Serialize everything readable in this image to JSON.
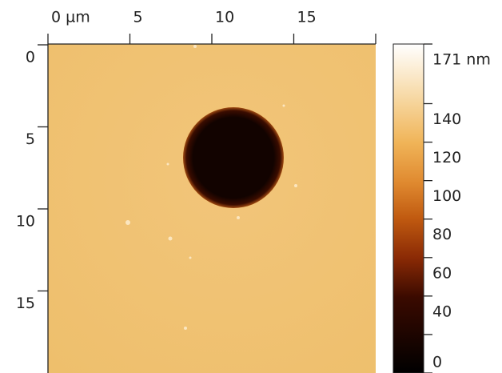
{
  "chart_data": {
    "type": "image",
    "xticks": [
      {
        "value": 0,
        "label": "0 µm"
      },
      5,
      10,
      15
    ],
    "xlim": [
      0,
      20
    ],
    "yticks": [
      0,
      5,
      10,
      15
    ],
    "ylim": [
      0,
      20
    ],
    "colorbar": {
      "lim": [
        0,
        171
      ],
      "ticks": [
        {
          "value": 171,
          "label": "171 nm"
        },
        140,
        120,
        100,
        80,
        60,
        40,
        0
      ],
      "minor_ticks": [
        20
      ]
    }
  }
}
